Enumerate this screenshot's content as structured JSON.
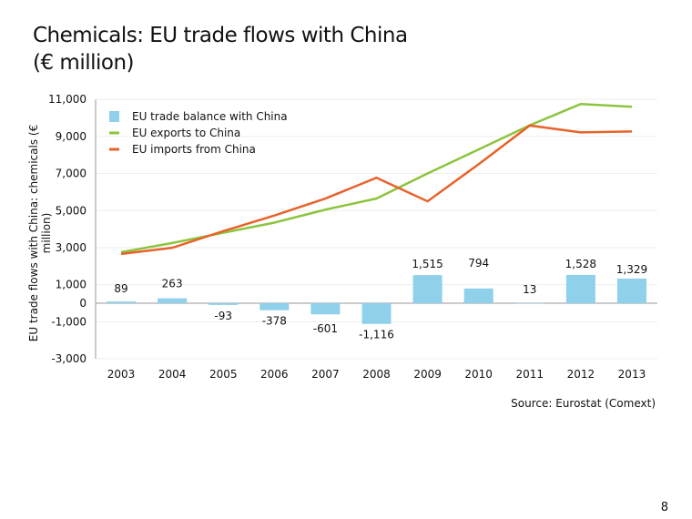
{
  "title_line1": "Chemicals: EU trade flows with China",
  "title_line2": "(€ million)",
  "source": "Source: Eurostat (Comext)",
  "page_number": "8",
  "chart_data": {
    "type": "bar+line",
    "ylabel": "EU trade flows with China: chemicals (€ million)",
    "ylim": [
      -3000,
      11000
    ],
    "yticks": [
      11000,
      9000,
      7000,
      5000,
      3000,
      1000,
      0,
      -1000,
      -3000
    ],
    "ytick_labels": [
      "11,000",
      "9,000",
      "7,000",
      "5,000",
      "3,000",
      "1,000",
      "0",
      "-1,000",
      "-3,000"
    ],
    "grid": true,
    "legend": "top-left",
    "categories": [
      "2003",
      "2004",
      "2005",
      "2006",
      "2007",
      "2008",
      "2009",
      "2010",
      "2011",
      "2012",
      "2013"
    ],
    "series": [
      {
        "name": "EU trade balance with China",
        "type": "bar",
        "color": "#8fd0ea",
        "values": [
          89,
          263,
          -93,
          -378,
          -601,
          -1116,
          1515,
          794,
          13,
          1528,
          1329
        ],
        "labels": [
          "89",
          "263",
          "-93",
          "-378",
          "-601",
          "-1,116",
          "1,515",
          "794",
          "13",
          "1,528",
          "1,329"
        ]
      },
      {
        "name": "EU exports to China",
        "type": "line",
        "color": "#8cc43f",
        "values": [
          2750,
          3250,
          3800,
          4350,
          5050,
          5650,
          7000,
          8300,
          9600,
          10750,
          10600
        ]
      },
      {
        "name": "EU imports from China",
        "type": "line",
        "color": "#e8622a",
        "values": [
          2660,
          2990,
          3890,
          4730,
          5650,
          6770,
          5500,
          7500,
          9590,
          9220,
          9270
        ]
      }
    ]
  }
}
